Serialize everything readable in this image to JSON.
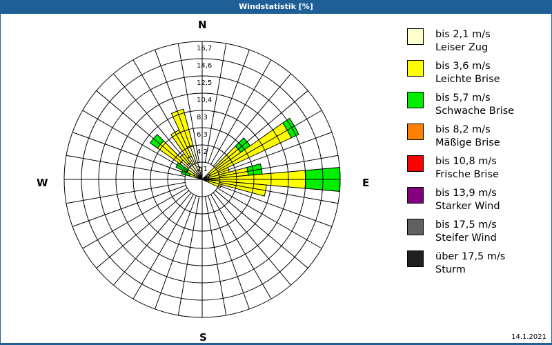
{
  "title": "Windstatistik [%]",
  "date": "14.1.2021",
  "compass": {
    "n": "N",
    "e": "E",
    "s": "S",
    "w": "W"
  },
  "legend": [
    {
      "speed": "bis 2,1 m/s",
      "name": "Leiser Zug",
      "color": "#ffffcc"
    },
    {
      "speed": "bis 3,6 m/s",
      "name": "Leichte Brise",
      "color": "#ffff00"
    },
    {
      "speed": "bis 5,7 m/s",
      "name": "Schwache Brise",
      "color": "#00ee00"
    },
    {
      "speed": "bis 8,2 m/s",
      "name": "Mäßige Brise",
      "color": "#ff8000"
    },
    {
      "speed": "bis 10,8 m/s",
      "name": "Frische Brise",
      "color": "#ff0000"
    },
    {
      "speed": "bis 13,9 m/s",
      "name": "Starker Wind",
      "color": "#800080"
    },
    {
      "speed": "bis 17,5 m/s",
      "name": "Steifer Wind",
      "color": "#606060"
    },
    {
      "speed": "über 17,5 m/s",
      "name": "Sturm",
      "color": "#202020"
    }
  ],
  "chart_data": {
    "type": "windrose",
    "title": "Windstatistik [%]",
    "unit": "%",
    "ring_labels": [
      "2,1",
      "4,2",
      "6,3",
      "8,3",
      "10,4",
      "12,5",
      "14,6",
      "16,7"
    ],
    "rmax": 16.7,
    "sector_width_deg": 10,
    "series_names": [
      "bis 2,1 m/s",
      "bis 3,6 m/s",
      "bis 5,7 m/s"
    ],
    "sectors": [
      {
        "dir": 290,
        "cumulative": [
          0.6,
          1.6,
          2.6
        ]
      },
      {
        "dir": 300,
        "cumulative": [
          1.0,
          2.0,
          3.5
        ]
      },
      {
        "dir": 310,
        "cumulative": [
          3.3,
          6.6,
          7.7
        ]
      },
      {
        "dir": 320,
        "cumulative": [
          2.5,
          3.8,
          3.8
        ]
      },
      {
        "dir": 330,
        "cumulative": [
          3.1,
          6.6,
          6.6
        ]
      },
      {
        "dir": 340,
        "cumulative": [
          4.3,
          8.8,
          8.8
        ]
      },
      {
        "dir": 350,
        "cumulative": [
          1.5,
          1.5,
          1.5
        ]
      },
      {
        "dir": 50,
        "cumulative": [
          1.0,
          5.7,
          7.1
        ]
      },
      {
        "dir": 60,
        "cumulative": [
          1.0,
          11.9,
          12.9
        ]
      },
      {
        "dir": 70,
        "cumulative": [
          0.8,
          3.4,
          3.4
        ]
      },
      {
        "dir": 80,
        "cumulative": [
          0.8,
          5.6,
          7.3
        ]
      },
      {
        "dir": 90,
        "cumulative": [
          0.8,
          12.5,
          16.7
        ]
      },
      {
        "dir": 100,
        "cumulative": [
          0.8,
          7.8,
          7.8
        ]
      },
      {
        "dir": 110,
        "cumulative": [
          0.6,
          2.4,
          2.4
        ]
      }
    ]
  }
}
